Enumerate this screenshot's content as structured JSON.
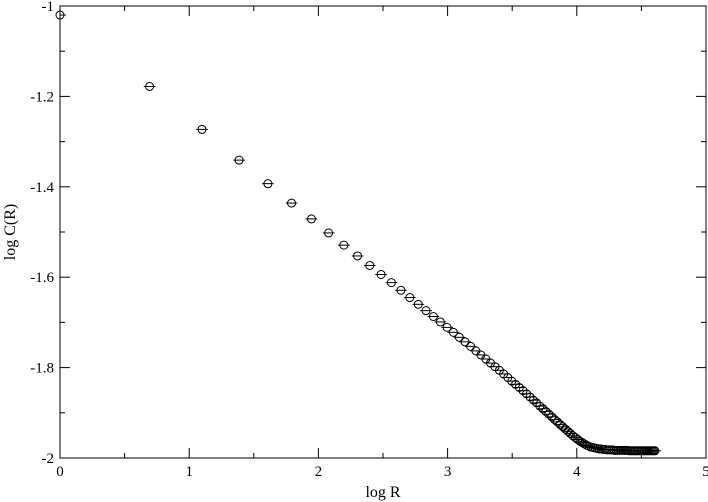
{
  "chart_data": {
    "type": "scatter",
    "xlabel": "log R",
    "ylabel": "log C(R)",
    "xlim": [
      0,
      5
    ],
    "ylim": [
      -2,
      -1
    ],
    "xticks": [
      0,
      1,
      2,
      3,
      4,
      5
    ],
    "xtick_labels": [
      "0",
      "1",
      "2",
      "3",
      "4",
      "5"
    ],
    "yticks": [
      -2,
      -1.8,
      -1.6,
      -1.4,
      -1.2,
      -1
    ],
    "ytick_labels": [
      "-2",
      "-1.8",
      "-1.6",
      "-1.4",
      "-1.2",
      "-1"
    ],
    "grid": false,
    "marker": "circle",
    "error_bars": "horizontal",
    "series": [
      {
        "x": [
          0,
          0.693,
          1.099,
          1.386,
          1.609,
          1.792,
          1.946,
          2.079,
          2.197,
          2.303,
          2.398,
          2.485,
          2.565,
          2.639,
          2.708,
          2.773,
          2.833,
          2.89,
          2.944,
          2.996,
          3.045,
          3.091,
          3.135,
          3.178,
          3.219,
          3.258,
          3.296,
          3.332,
          3.367,
          3.401,
          3.434,
          3.466,
          3.497,
          3.526,
          3.555,
          3.584,
          3.611,
          3.638,
          3.664,
          3.689,
          3.714,
          3.738,
          3.761,
          3.784,
          3.807,
          3.829,
          3.85,
          3.871,
          3.892,
          3.912,
          3.932,
          3.951,
          3.97,
          3.989,
          4.007,
          4.025,
          4.043,
          4.06,
          4.078,
          4.094,
          4.111,
          4.127,
          4.143,
          4.159,
          4.174,
          4.19,
          4.205,
          4.22,
          4.234,
          4.248,
          4.263,
          4.277,
          4.29,
          4.304,
          4.317,
          4.331,
          4.344,
          4.357,
          4.369,
          4.382,
          4.394,
          4.407,
          4.419,
          4.431,
          4.443,
          4.454,
          4.466,
          4.477,
          4.489,
          4.5,
          4.511,
          4.522,
          4.533,
          4.543,
          4.554,
          4.564,
          4.575,
          4.585,
          4.595,
          4.605
        ],
        "y": [
          -1.02,
          -1.178,
          -1.273,
          -1.341,
          -1.393,
          -1.436,
          -1.471,
          -1.502,
          -1.529,
          -1.553,
          -1.574,
          -1.594,
          -1.612,
          -1.629,
          -1.645,
          -1.66,
          -1.674,
          -1.687,
          -1.699,
          -1.711,
          -1.722,
          -1.733,
          -1.743,
          -1.753,
          -1.763,
          -1.772,
          -1.781,
          -1.79,
          -1.798,
          -1.806,
          -1.814,
          -1.822,
          -1.83,
          -1.837,
          -1.844,
          -1.851,
          -1.858,
          -1.865,
          -1.872,
          -1.878,
          -1.885,
          -1.891,
          -1.897,
          -1.903,
          -1.909,
          -1.915,
          -1.92,
          -1.926,
          -1.931,
          -1.936,
          -1.941,
          -1.946,
          -1.951,
          -1.955,
          -1.959,
          -1.963,
          -1.966,
          -1.969,
          -1.972,
          -1.974,
          -1.976,
          -1.977,
          -1.978,
          -1.979,
          -1.98,
          -1.98,
          -1.981,
          -1.981,
          -1.982,
          -1.982,
          -1.982,
          -1.982,
          -1.983,
          -1.983,
          -1.983,
          -1.983,
          -1.983,
          -1.983,
          -1.983,
          -1.983,
          -1.983,
          -1.984,
          -1.984,
          -1.984,
          -1.984,
          -1.984,
          -1.984,
          -1.984,
          -1.984,
          -1.984,
          -1.984,
          -1.984,
          -1.984,
          -1.984,
          -1.984,
          -1.984,
          -1.984,
          -1.984,
          -1.984,
          -1.984
        ],
        "xerr": 0.045
      }
    ]
  }
}
